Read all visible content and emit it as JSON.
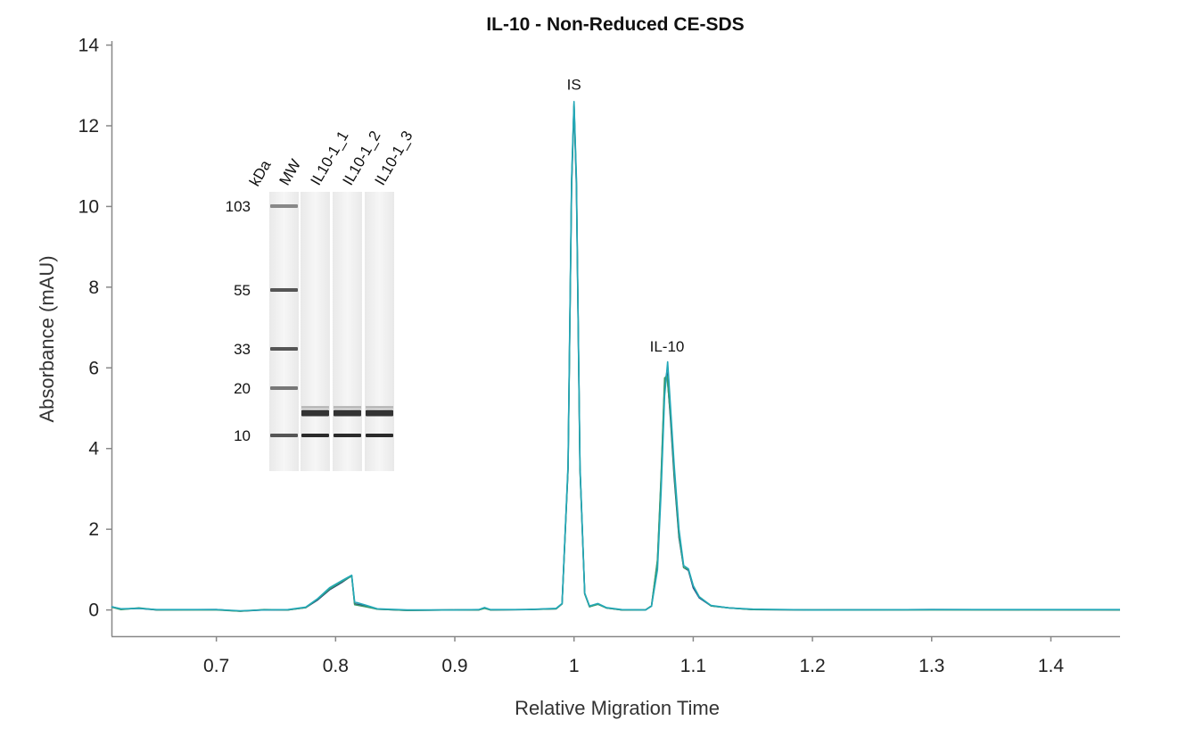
{
  "chart_data": {
    "type": "line",
    "title": "IL-10 - Non-Reduced CE-SDS",
    "xlabel": "Relative Migration Time",
    "ylabel": "Absorbance (mAU)",
    "xlim": [
      0.612,
      1.458
    ],
    "ylim": [
      -0.65,
      14.1
    ],
    "x_ticks": [
      0.7,
      0.8,
      0.9,
      1.0,
      1.1,
      1.2,
      1.3,
      1.4
    ],
    "x_tick_labels": [
      "0.7",
      "0.8",
      "0.9",
      "1",
      "1.1",
      "1.2",
      "1.3",
      "1.4"
    ],
    "y_ticks": [
      0,
      2,
      4,
      6,
      8,
      10,
      12,
      14
    ],
    "y_tick_labels": [
      "0",
      "2",
      "4",
      "6",
      "8",
      "10",
      "12",
      "14"
    ],
    "grid": false,
    "series": [
      {
        "color": "#1f3f7a",
        "points": [
          [
            0.612,
            0.08
          ],
          [
            0.62,
            0.02
          ],
          [
            0.635,
            0.04
          ],
          [
            0.65,
            0.0
          ],
          [
            0.7,
            0.01
          ],
          [
            0.72,
            -0.03
          ],
          [
            0.74,
            0.0
          ],
          [
            0.76,
            0.0
          ],
          [
            0.775,
            0.06
          ],
          [
            0.785,
            0.25
          ],
          [
            0.795,
            0.5
          ],
          [
            0.805,
            0.68
          ],
          [
            0.8135,
            0.85
          ],
          [
            0.816,
            0.15
          ],
          [
            0.825,
            0.1
          ],
          [
            0.835,
            0.02
          ],
          [
            0.86,
            -0.01
          ],
          [
            0.9,
            0.0
          ],
          [
            0.92,
            0.0
          ],
          [
            0.925,
            0.05
          ],
          [
            0.93,
            0.0
          ],
          [
            0.96,
            0.01
          ],
          [
            0.985,
            0.03
          ],
          [
            0.99,
            0.15
          ],
          [
            0.995,
            3.5
          ],
          [
            0.998,
            10.5
          ],
          [
            1.0,
            12.5
          ],
          [
            1.002,
            10.5
          ],
          [
            1.005,
            3.5
          ],
          [
            1.009,
            0.4
          ],
          [
            1.013,
            0.08
          ],
          [
            1.02,
            0.15
          ],
          [
            1.027,
            0.05
          ],
          [
            1.04,
            0.0
          ],
          [
            1.06,
            0.0
          ],
          [
            1.065,
            0.1
          ],
          [
            1.07,
            1.2
          ],
          [
            1.073,
            3.2
          ],
          [
            1.076,
            5.6
          ],
          [
            1.078,
            5.9
          ],
          [
            1.081,
            4.7
          ],
          [
            1.084,
            3.3
          ],
          [
            1.088,
            1.8
          ],
          [
            1.092,
            1.05
          ],
          [
            1.096,
            0.98
          ],
          [
            1.1,
            0.55
          ],
          [
            1.105,
            0.3
          ],
          [
            1.115,
            0.1
          ],
          [
            1.13,
            0.05
          ],
          [
            1.15,
            0.01
          ],
          [
            1.2,
            0.0
          ],
          [
            1.3,
            0.01
          ],
          [
            1.458,
            0.0
          ]
        ]
      },
      {
        "color": "#3a9a6a",
        "points": [
          [
            0.612,
            0.07
          ],
          [
            0.62,
            0.01
          ],
          [
            0.635,
            0.05
          ],
          [
            0.65,
            0.0
          ],
          [
            0.7,
            0.0
          ],
          [
            0.72,
            -0.03
          ],
          [
            0.74,
            0.01
          ],
          [
            0.76,
            0.0
          ],
          [
            0.775,
            0.06
          ],
          [
            0.785,
            0.27
          ],
          [
            0.795,
            0.52
          ],
          [
            0.805,
            0.7
          ],
          [
            0.8135,
            0.84
          ],
          [
            0.816,
            0.13
          ],
          [
            0.825,
            0.08
          ],
          [
            0.835,
            0.02
          ],
          [
            0.86,
            -0.01
          ],
          [
            0.9,
            0.0
          ],
          [
            0.92,
            0.0
          ],
          [
            0.925,
            0.04
          ],
          [
            0.93,
            0.0
          ],
          [
            0.96,
            0.01
          ],
          [
            0.985,
            0.03
          ],
          [
            0.99,
            0.15
          ],
          [
            0.995,
            3.5
          ],
          [
            0.998,
            10.6
          ],
          [
            1.0,
            12.55
          ],
          [
            1.002,
            10.6
          ],
          [
            1.005,
            3.5
          ],
          [
            1.009,
            0.4
          ],
          [
            1.013,
            0.08
          ],
          [
            1.02,
            0.14
          ],
          [
            1.027,
            0.05
          ],
          [
            1.04,
            0.0
          ],
          [
            1.06,
            0.0
          ],
          [
            1.065,
            0.1
          ],
          [
            1.07,
            1.25
          ],
          [
            1.073,
            3.3
          ],
          [
            1.076,
            5.75
          ],
          [
            1.078,
            5.8
          ],
          [
            1.081,
            4.8
          ],
          [
            1.084,
            3.4
          ],
          [
            1.088,
            1.85
          ],
          [
            1.092,
            1.05
          ],
          [
            1.096,
            1.0
          ],
          [
            1.1,
            0.6
          ],
          [
            1.105,
            0.33
          ],
          [
            1.115,
            0.1
          ],
          [
            1.13,
            0.05
          ],
          [
            1.15,
            0.01
          ],
          [
            1.2,
            0.0
          ],
          [
            1.3,
            0.0
          ],
          [
            1.458,
            0.0
          ]
        ]
      },
      {
        "color": "#23a8b8",
        "points": [
          [
            0.612,
            0.08
          ],
          [
            0.62,
            0.03
          ],
          [
            0.635,
            0.04
          ],
          [
            0.65,
            0.01
          ],
          [
            0.7,
            0.01
          ],
          [
            0.72,
            -0.02
          ],
          [
            0.74,
            0.0
          ],
          [
            0.76,
            0.01
          ],
          [
            0.775,
            0.07
          ],
          [
            0.785,
            0.28
          ],
          [
            0.795,
            0.55
          ],
          [
            0.805,
            0.72
          ],
          [
            0.8135,
            0.86
          ],
          [
            0.816,
            0.2
          ],
          [
            0.825,
            0.12
          ],
          [
            0.835,
            0.03
          ],
          [
            0.86,
            0.0
          ],
          [
            0.9,
            0.0
          ],
          [
            0.92,
            0.01
          ],
          [
            0.925,
            0.06
          ],
          [
            0.93,
            0.01
          ],
          [
            0.96,
            0.01
          ],
          [
            0.985,
            0.04
          ],
          [
            0.99,
            0.16
          ],
          [
            0.995,
            3.6
          ],
          [
            0.998,
            10.7
          ],
          [
            1.0,
            12.6
          ],
          [
            1.002,
            10.7
          ],
          [
            1.005,
            3.6
          ],
          [
            1.009,
            0.42
          ],
          [
            1.013,
            0.1
          ],
          [
            1.02,
            0.16
          ],
          [
            1.027,
            0.06
          ],
          [
            1.04,
            0.01
          ],
          [
            1.06,
            0.0
          ],
          [
            1.065,
            0.09
          ],
          [
            1.07,
            1.0
          ],
          [
            1.073,
            2.9
          ],
          [
            1.076,
            5.3
          ],
          [
            1.0785,
            6.15
          ],
          [
            1.081,
            5.0
          ],
          [
            1.084,
            3.6
          ],
          [
            1.088,
            2.0
          ],
          [
            1.092,
            1.1
          ],
          [
            1.096,
            1.02
          ],
          [
            1.1,
            0.6
          ],
          [
            1.105,
            0.32
          ],
          [
            1.115,
            0.11
          ],
          [
            1.13,
            0.05
          ],
          [
            1.15,
            0.02
          ],
          [
            1.2,
            0.0
          ],
          [
            1.3,
            0.01
          ],
          [
            1.458,
            0.01
          ]
        ]
      }
    ],
    "annotations": [
      {
        "text": "IS",
        "x": 1.0,
        "y": 12.9
      },
      {
        "text": "IL-10",
        "x": 1.078,
        "y": 6.4
      }
    ]
  },
  "gel_inset": {
    "unit_label": "kDa",
    "lane_labels": [
      "MW",
      "IL10-1_1",
      "IL10-1_2",
      "IL10-1_3"
    ],
    "marker_labels": [
      "103",
      "55",
      "33",
      "20",
      "10"
    ],
    "marker_bands_kDa": [
      103,
      55,
      33,
      20,
      10
    ],
    "sample_bands_kDa": [
      15,
      10
    ]
  }
}
